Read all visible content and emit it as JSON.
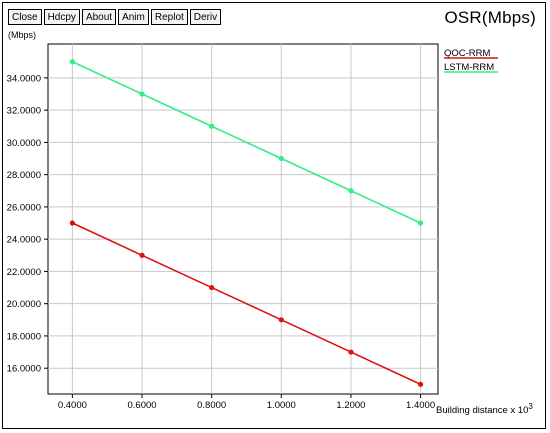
{
  "toolbar": {
    "close_label": "Close",
    "hdcpy_label": "Hdcpy",
    "about_label": "About",
    "anim_label": "Anim",
    "replot_label": "Replot",
    "deriv_label": "Deriv"
  },
  "chart_data": {
    "type": "line",
    "title": "OSR(Mbps)",
    "ylabel": "(Mbps)",
    "xlabel": "Building distance x 10",
    "xlabel_exponent": "3",
    "x": [
      0.4,
      0.6,
      0.8,
      1.0,
      1.2,
      1.4
    ],
    "x_ticks": [
      "0.4000",
      "0.6000",
      "0.8000",
      "1.0000",
      "1.2000",
      "1.4000"
    ],
    "y_ticks": [
      "16.0000",
      "18.0000",
      "20.0000",
      "22.0000",
      "24.0000",
      "26.0000",
      "28.0000",
      "30.0000",
      "32.0000",
      "34.0000"
    ],
    "xlim": [
      0.33,
      1.45
    ],
    "ylim": [
      14.4,
      36.1
    ],
    "grid": true,
    "legend_position": "top-right",
    "series": [
      {
        "name": "QOC-RRM",
        "color": "#dd1111",
        "values": [
          25,
          23,
          21,
          19,
          17,
          15
        ]
      },
      {
        "name": "LSTM-RRM",
        "color": "#33ee88",
        "values": [
          35,
          33,
          31,
          29,
          27,
          25
        ]
      }
    ]
  }
}
